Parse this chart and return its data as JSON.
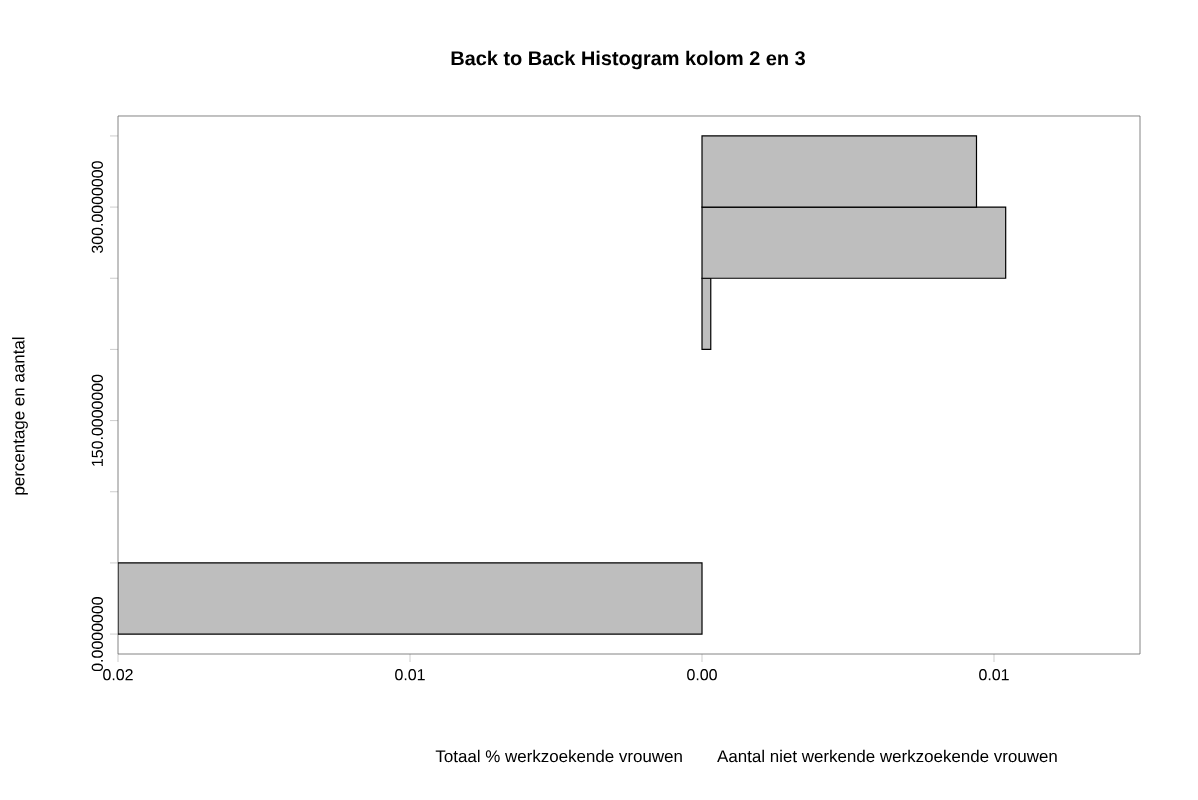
{
  "chart_data": {
    "type": "histogram",
    "orientation": "horizontal",
    "title": "Back to Back Histogram kolom 2 en 3",
    "xlabel": "Totaal % werkzoekende vrouwen",
    "ylabel": "percentage en aantal",
    "annotations": [
      "Aantal niet werkende werkzoekende vrouwen"
    ],
    "bins": [
      0,
      50,
      100,
      150,
      200,
      250,
      300,
      350
    ],
    "series": [
      {
        "color": "#bebebe",
        "values": [
          -0.02,
          0,
          0,
          0,
          0,
          0,
          0
        ]
      },
      {
        "color": "#bebebe",
        "values": [
          0,
          0,
          0,
          0,
          0.0003,
          0.0104,
          0.0094
        ]
      }
    ],
    "xlim": [
      -0.02,
      0.015
    ],
    "ylim": [
      -14,
      364
    ],
    "xticks": [
      {
        "value": -0.02,
        "label": "0.02"
      },
      {
        "value": -0.01,
        "label": "0.01"
      },
      {
        "value": 0,
        "label": "0.00"
      },
      {
        "value": 0.01,
        "label": "0.01"
      }
    ],
    "yticks": [
      {
        "value": 0,
        "label": "0.0000000"
      },
      {
        "value": 50,
        "label": null
      },
      {
        "value": 100,
        "label": null
      },
      {
        "value": 150,
        "label": "150.0000000"
      },
      {
        "value": 200,
        "label": null
      },
      {
        "value": 250,
        "label": null
      },
      {
        "value": 300,
        "label": "300.0000000"
      },
      {
        "value": 350,
        "label": null
      }
    ],
    "grid": false
  }
}
